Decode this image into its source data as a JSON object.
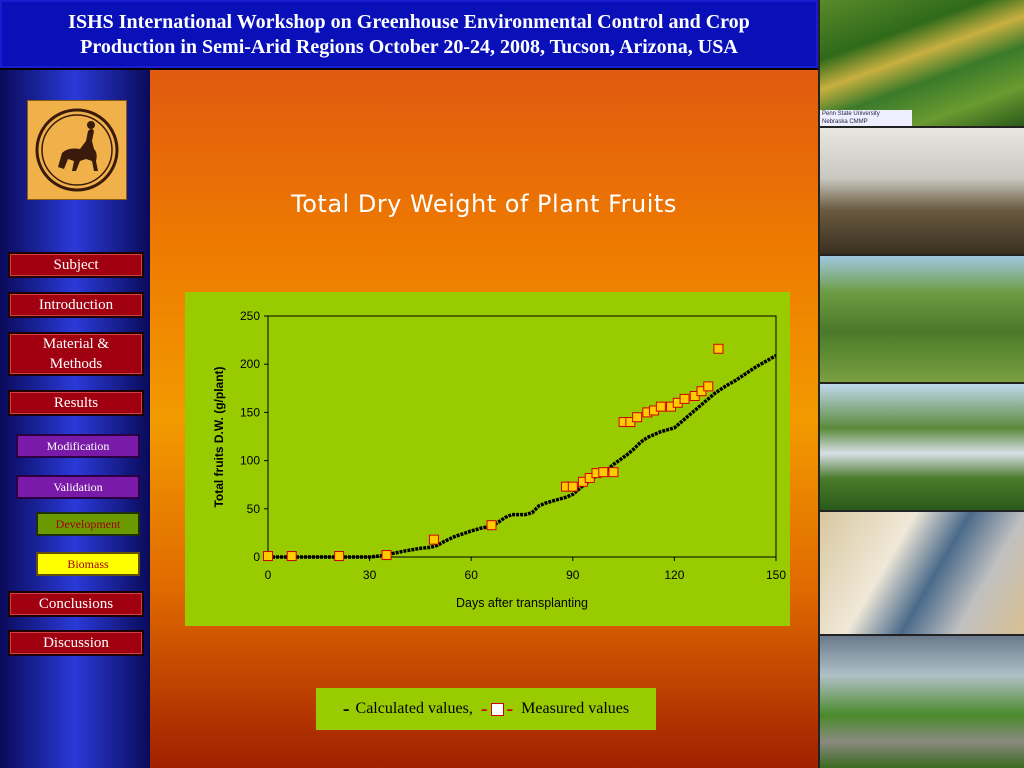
{
  "header": {
    "line1": "ISHS International Workshop on Greenhouse Environmental Control and Crop",
    "line2": "Production in Semi-Arid Regions October 20-24, 2008, Tucson, Arizona, USA"
  },
  "nav": {
    "subject": "Subject",
    "introduction": "Introduction",
    "material_methods_1": "Material &",
    "material_methods_2": "Methods",
    "results": "Results",
    "modification": "Modification",
    "validation": "Validation",
    "development": "Development",
    "biomass": "Biomass",
    "conclusions": "Conclusions",
    "discussion": "Discussion"
  },
  "slide": {
    "title": "Total Dry Weight of Plant Fruits"
  },
  "photos": {
    "caption1": "Penn State University",
    "caption2": "Nebraska CMMP"
  },
  "legend": {
    "calc_dash": "-",
    "calc_label": "Calculated values,",
    "meas_dash1": "-",
    "meas_dash2": "-",
    "meas_label": "Measured values"
  },
  "colors": {
    "header_bg": "#0a10b8",
    "chart_bg": "#99cc00",
    "marker_fill": "#ffcc00",
    "marker_edge": "#d00000",
    "line": "#000000"
  },
  "chart_data": {
    "type": "line",
    "title": "",
    "xlabel": "Days after transplanting",
    "ylabel": "Total fruits D.W. (g/plant)",
    "xlim": [
      0,
      150
    ],
    "ylim": [
      0,
      250
    ],
    "xticks": [
      0,
      30,
      60,
      90,
      120,
      150
    ],
    "yticks": [
      0,
      50,
      100,
      150,
      200,
      250
    ],
    "grid": false,
    "series": [
      {
        "kind": "line",
        "x": [
          0,
          10,
          20,
          30,
          33,
          36,
          40,
          45,
          48,
          50,
          52,
          55,
          60,
          63,
          66,
          68,
          70,
          72,
          74,
          76,
          78,
          80,
          82,
          84,
          86,
          88,
          90,
          92,
          94,
          96,
          98,
          100,
          102,
          104,
          106,
          108,
          110,
          112,
          114,
          116,
          118,
          120,
          122,
          124,
          126,
          128,
          130,
          132,
          135,
          138,
          141,
          144,
          147,
          150
        ],
        "y": [
          0,
          0,
          0,
          0,
          1,
          3,
          6,
          9,
          10,
          12,
          16,
          21,
          27,
          30,
          32,
          36,
          41,
          44,
          44,
          44,
          46,
          53,
          56,
          58,
          60,
          62,
          65,
          71,
          77,
          82,
          86,
          90,
          96,
          101,
          106,
          112,
          119,
          124,
          127,
          130,
          132,
          134,
          140,
          146,
          152,
          158,
          164,
          170,
          177,
          183,
          190,
          197,
          203,
          209
        ]
      },
      {
        "kind": "scatter",
        "x": [
          0,
          7,
          21,
          35,
          49,
          66,
          88,
          90,
          93,
          95,
          97,
          99,
          102,
          105,
          107,
          109,
          112,
          114,
          116,
          119,
          121,
          123,
          126,
          128,
          130,
          133
        ],
        "y": [
          1,
          1,
          1,
          2,
          18,
          33,
          73,
          73,
          78,
          82,
          87,
          88,
          88,
          140,
          140,
          145,
          150,
          152,
          156,
          156,
          160,
          164,
          167,
          172,
          177,
          216
        ]
      }
    ]
  }
}
